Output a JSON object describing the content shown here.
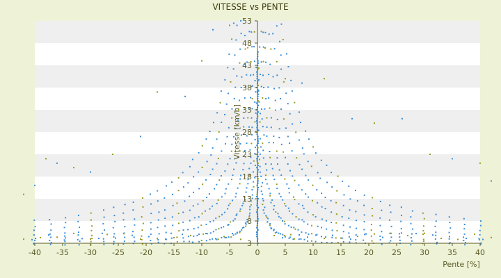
{
  "colors": {
    "background": "#eef2d6",
    "plot_band_light": "#ffffff",
    "plot_band_dark": "#efefef",
    "axis": "#5b5b2a",
    "series_primary": "#3a8fd8",
    "series_secondary": "#9a9a20"
  },
  "chart_data": {
    "type": "scatter",
    "title": "VITESSE vs PENTE",
    "xlabel": "Pente [%]",
    "ylabel": "Vitesse [km/h]",
    "xlim": [
      -40,
      40
    ],
    "ylim": [
      3,
      53
    ],
    "xticks": [
      -40,
      -35,
      -30,
      -25,
      -20,
      -15,
      -10,
      -5,
      0,
      5,
      10,
      15,
      20,
      25,
      30,
      35,
      40
    ],
    "yticks": [
      3,
      8,
      13,
      18,
      23,
      28,
      33,
      38,
      43,
      48,
      53
    ],
    "grid": "horizontal bands",
    "legend": "none",
    "series": [
      {
        "curve_family": "descending-slope branches (x < 0), speed = k / |slope|",
        "k_values": [
          10,
          25,
          45,
          70,
          100,
          135,
          175,
          220
        ],
        "x_range": [
          -40,
          -0.2
        ],
        "y_cap": 53
      },
      {
        "curve_family": "ascending-slope branches (x > 0), speed = k / slope",
        "k_values": [
          10,
          25,
          45,
          70,
          100,
          135,
          175,
          220
        ],
        "x_range": [
          0.2,
          40
        ],
        "y_cap": 53
      },
      {
        "curve_family": "flat-slope cluster at x = 0",
        "x": 0,
        "y_range": [
          3,
          46
        ]
      },
      {
        "curve_family": "scattered outliers",
        "points": [
          [
            -40,
            16
          ],
          [
            -38,
            22
          ],
          [
            -36,
            21
          ],
          [
            -33,
            20
          ],
          [
            -30,
            19
          ],
          [
            -26,
            23
          ],
          [
            -21,
            27
          ],
          [
            -18,
            37
          ],
          [
            -13,
            36
          ],
          [
            -10,
            44
          ],
          [
            -8,
            51
          ],
          [
            -5,
            52
          ],
          [
            -3,
            53
          ],
          [
            5,
            40
          ],
          [
            8,
            39
          ],
          [
            12,
            40
          ],
          [
            17,
            31
          ],
          [
            21,
            30
          ],
          [
            26,
            31
          ],
          [
            31,
            23
          ],
          [
            35,
            22
          ],
          [
            40,
            21
          ],
          [
            42,
            17
          ],
          [
            -42,
            14
          ]
        ]
      }
    ]
  }
}
